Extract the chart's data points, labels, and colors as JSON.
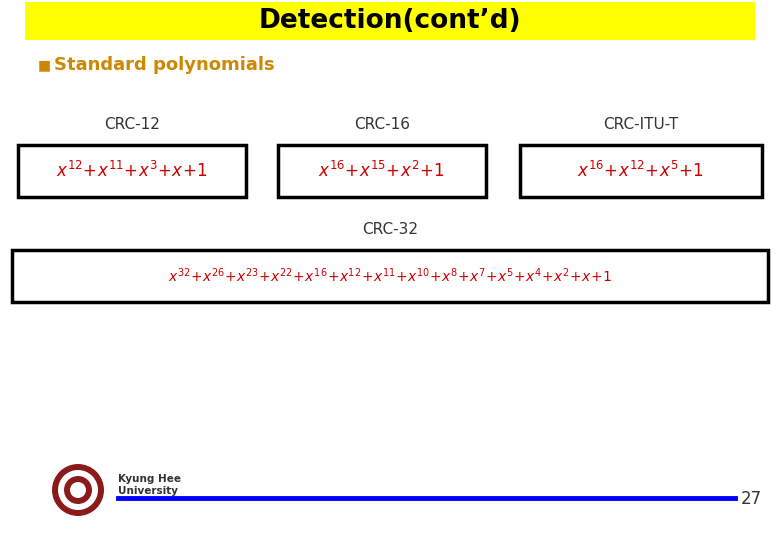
{
  "title": "Detection(cont’d)",
  "title_bg": "#FFFF00",
  "title_color": "#000000",
  "subtitle": "Standard polynomials",
  "subtitle_bullet_color": "#CC8800",
  "crc12_label": "CRC-12",
  "crc16_label": "CRC-16",
  "crcitu_label": "CRC-ITU-T",
  "crc32_label": "CRC-32",
  "crc12_formula": "$x^{12}\\!+\\!x^{11}\\!+\\!x^{3}\\!+\\!x\\!+\\!1$",
  "crc16_formula": "$x^{16}\\!+\\!x^{15}\\!+\\!x^{2}\\!+\\!1$",
  "crcitu_formula": "$x^{16}\\!+\\!x^{12}\\!+\\!x^{5}\\!+\\!1$",
  "crc32_formula": "$x^{32}\\!+\\!x^{26}\\!+\\!x^{23}\\!+\\!x^{22}\\!+\\!x^{16}\\!+\\!x^{12}\\!+\\!x^{11}\\!+\\!x^{10}\\!+\\!x^{8}\\!+\\!x^{7}\\!+\\!x^{5}\\!+\\!x^{4}\\!+\\!x^{2}\\!+\\!x\\!+\\!1$",
  "formula_color": "#CC0000",
  "label_color": "#333333",
  "box_edge_color": "#000000",
  "page_number": "27",
  "footer_line_color": "#0000FF",
  "bg_color": "#FFFFFF",
  "title_fontsize": 19,
  "subtitle_fontsize": 13,
  "label_fontsize": 11,
  "formula_fontsize": 12,
  "crc32_formula_fontsize": 10,
  "page_fontsize": 12
}
